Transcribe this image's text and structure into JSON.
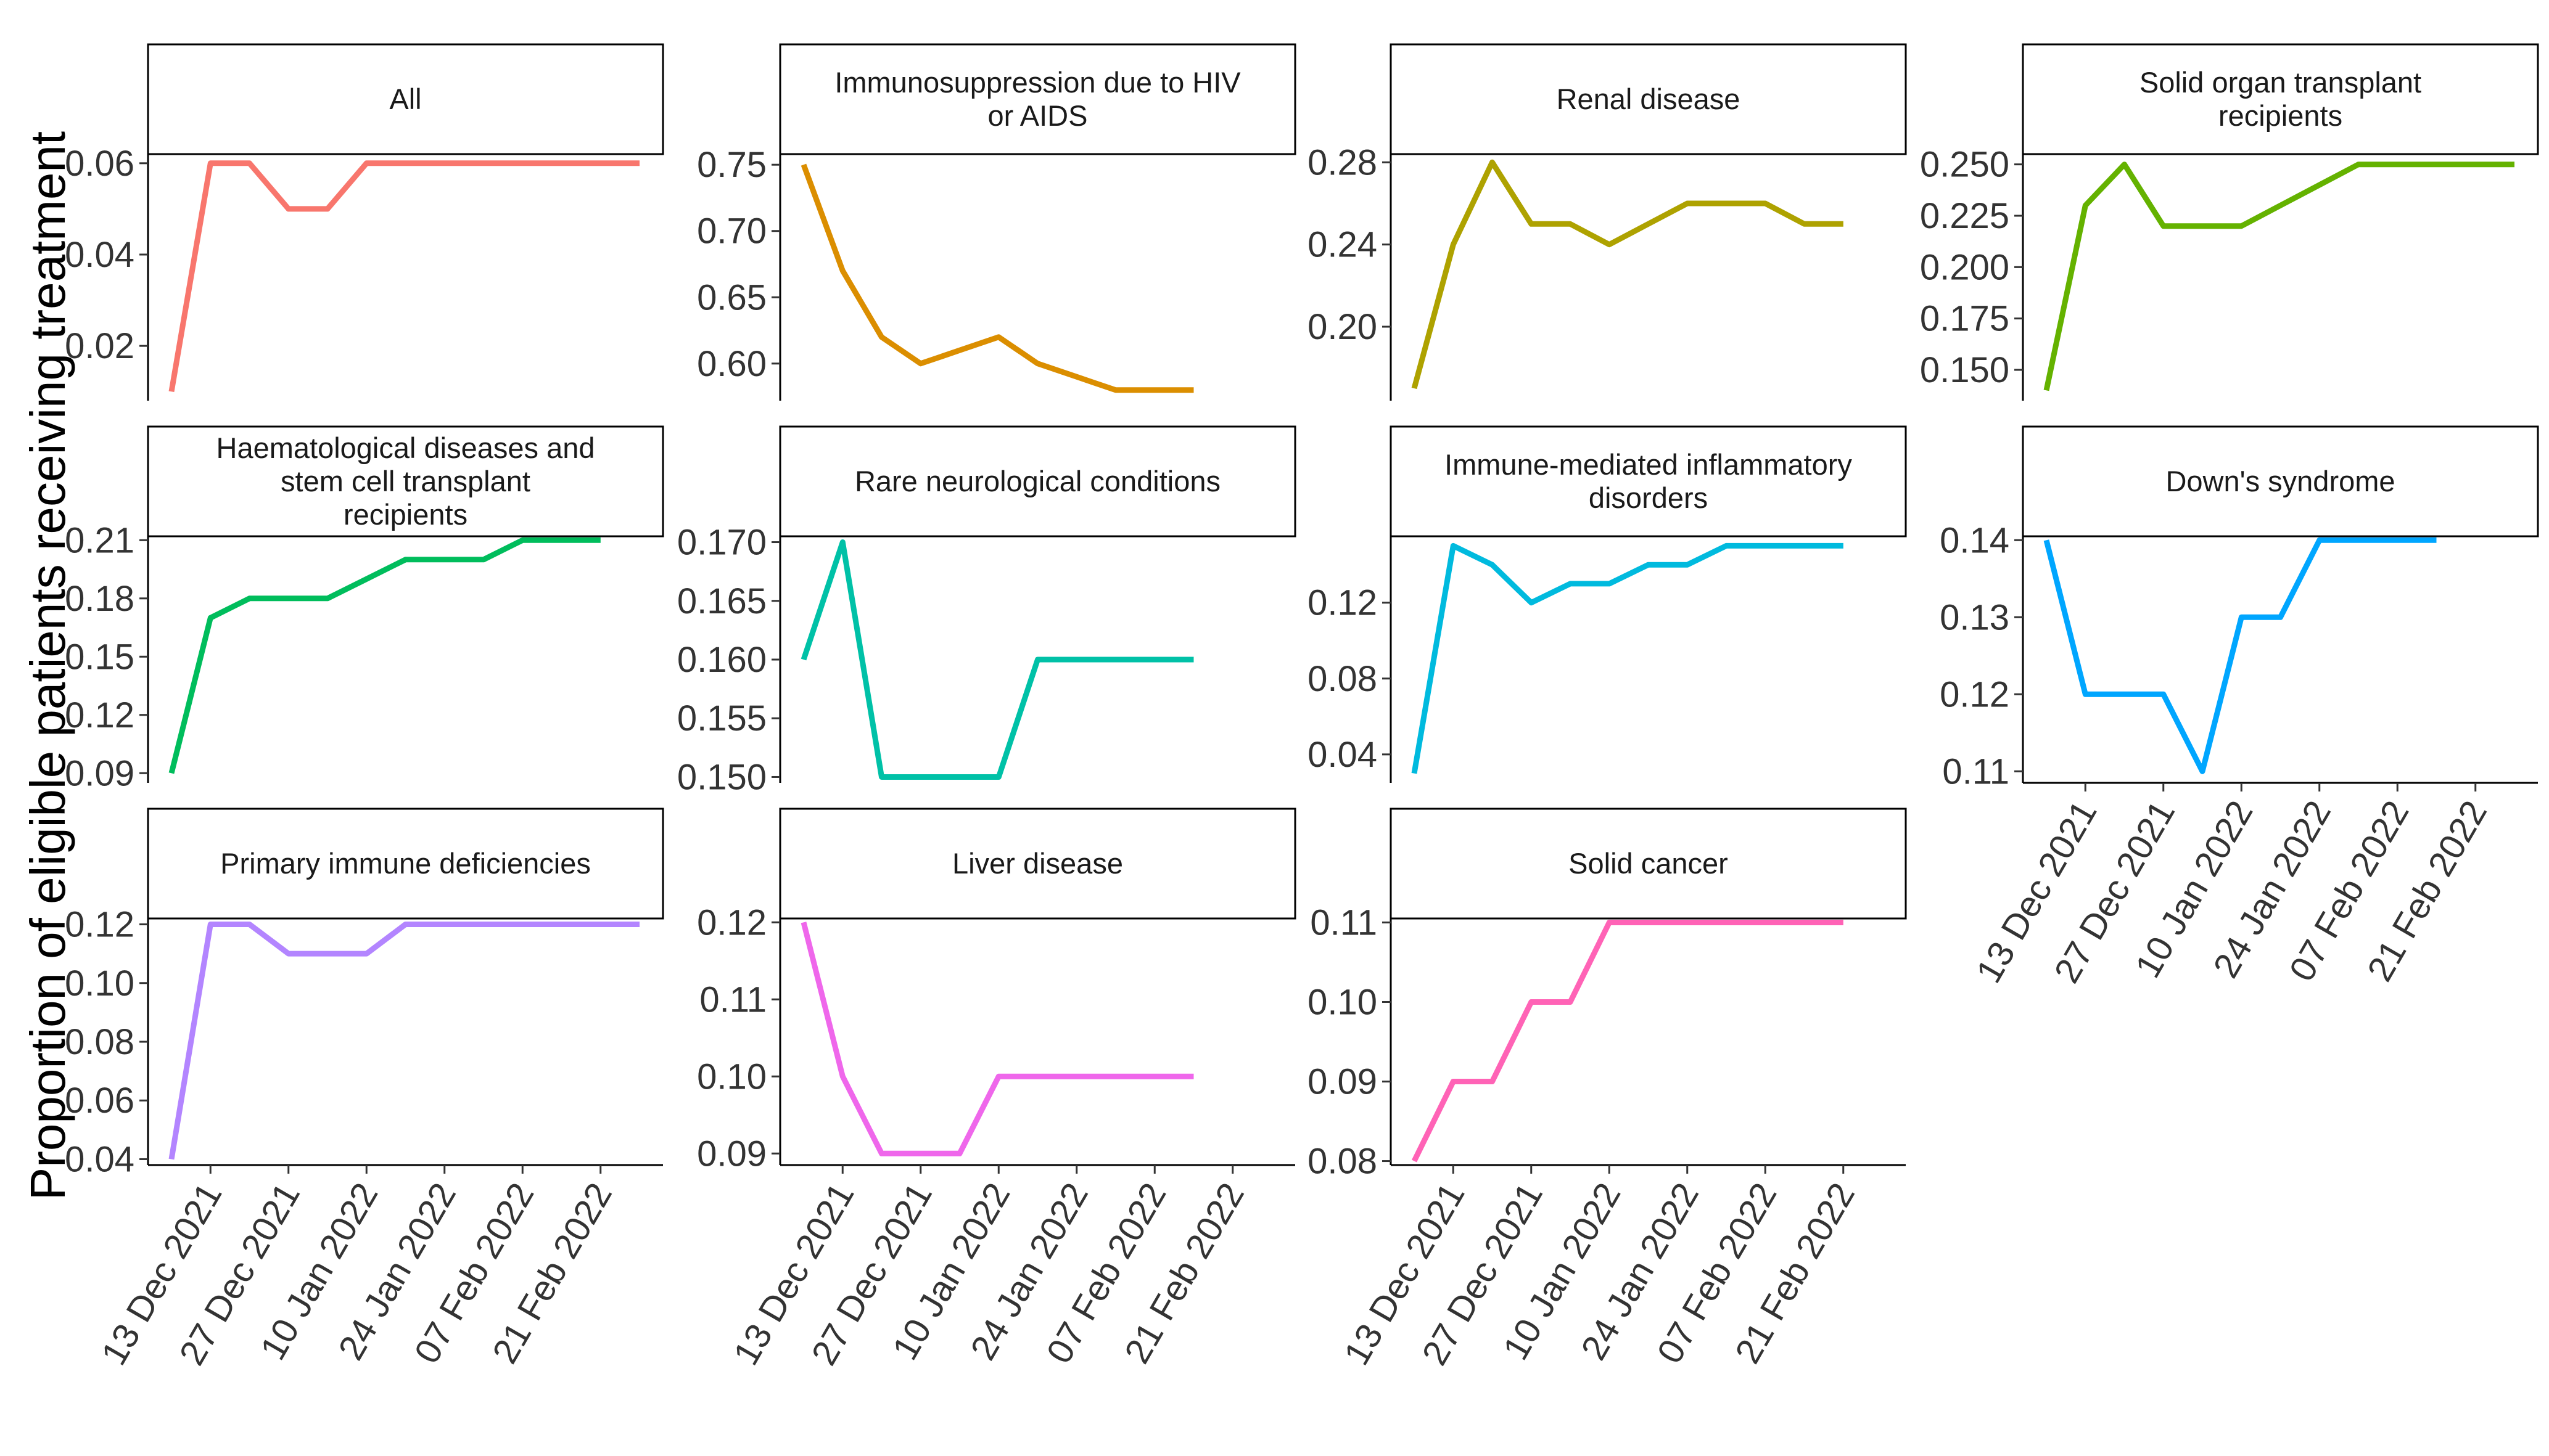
{
  "chart_data": {
    "type": "line",
    "ylabel": "Proportion of eligible patients receiving treatment",
    "x": [
      "2021-12-06",
      "2021-12-13",
      "2021-12-20",
      "2021-12-27",
      "2022-01-03",
      "2022-01-10",
      "2022-01-17",
      "2022-01-24",
      "2022-01-31",
      "2022-02-07",
      "2022-02-14",
      "2022-02-21",
      "2022-02-28"
    ],
    "x_tick_dates": [
      "2021-12-13",
      "2021-12-27",
      "2022-01-10",
      "2022-01-24",
      "2022-02-07",
      "2022-02-21"
    ],
    "x_tick_labels": [
      "13 Dec 2021",
      "27 Dec 2021",
      "10 Jan 2022",
      "24 Jan 2022",
      "07 Feb 2022",
      "21 Feb 2022"
    ],
    "panels": [
      {
        "title": [
          "All"
        ],
        "color": "#F8766D",
        "ylim": [
          0.008,
          0.062
        ],
        "yticks": [
          0.02,
          0.04,
          0.06
        ],
        "ytick_labels": [
          "0.02",
          "0.04",
          "0.06"
        ],
        "values": [
          0.01,
          0.06,
          0.06,
          0.05,
          0.05,
          0.06,
          0.06,
          0.06,
          0.06,
          0.06,
          0.06,
          0.06,
          0.06
        ]
      },
      {
        "title": [
          "Immunosuppression due to HIV",
          "or AIDS"
        ],
        "color": "#DB8E00",
        "ylim": [
          0.572,
          0.758
        ],
        "yticks": [
          0.6,
          0.65,
          0.7,
          0.75
        ],
        "ytick_labels": [
          "0.60",
          "0.65",
          "0.70",
          "0.75"
        ],
        "values": [
          0.75,
          0.67,
          0.62,
          0.6,
          0.61,
          0.62,
          0.6,
          0.59,
          0.58,
          0.58,
          0.58
        ]
      },
      {
        "title": [
          "Renal disease"
        ],
        "color": "#AEA200",
        "ylim": [
          0.164,
          0.284
        ],
        "yticks": [
          0.2,
          0.24,
          0.28
        ],
        "ytick_labels": [
          "0.20",
          "0.24",
          "0.28"
        ],
        "values": [
          0.17,
          0.24,
          0.28,
          0.25,
          0.25,
          0.24,
          0.25,
          0.26,
          0.26,
          0.26,
          0.25,
          0.25
        ]
      },
      {
        "title": [
          "Solid organ transplant",
          "recipients"
        ],
        "color": "#64B200",
        "ylim": [
          0.135,
          0.255
        ],
        "yticks": [
          0.15,
          0.175,
          0.2,
          0.225,
          0.25
        ],
        "ytick_labels": [
          "0.150",
          "0.175",
          "0.200",
          "0.225",
          "0.250"
        ],
        "values": [
          0.14,
          0.23,
          0.25,
          0.22,
          0.22,
          0.22,
          0.23,
          0.24,
          0.25,
          0.25,
          0.25,
          0.25,
          0.25
        ]
      },
      {
        "title": [
          "Haematological diseases and",
          "stem cell transplant",
          "recipients"
        ],
        "color": "#00BD5C",
        "ylim": [
          0.085,
          0.212
        ],
        "yticks": [
          0.09,
          0.12,
          0.15,
          0.18,
          0.21
        ],
        "ytick_labels": [
          "0.09",
          "0.12",
          "0.15",
          "0.18",
          "0.21"
        ],
        "values": [
          0.09,
          0.17,
          0.18,
          0.18,
          0.18,
          0.19,
          0.2,
          0.2,
          0.2,
          0.21,
          0.21,
          0.21
        ]
      },
      {
        "title": [
          "Rare neurological conditions"
        ],
        "color": "#00C1A7",
        "ylim": [
          0.1495,
          0.1705
        ],
        "yticks": [
          0.15,
          0.155,
          0.16,
          0.165,
          0.17
        ],
        "ytick_labels": [
          "0.150",
          "0.155",
          "0.160",
          "0.165",
          "0.170"
        ],
        "values": [
          0.16,
          0.17,
          0.15,
          0.15,
          0.15,
          0.15,
          0.16,
          0.16,
          0.16,
          0.16,
          0.16
        ]
      },
      {
        "title": [
          "Immune-mediated inflammatory",
          "disorders"
        ],
        "color": "#00BADE",
        "ylim": [
          0.025,
          0.155
        ],
        "yticks": [
          0.04,
          0.08,
          0.12
        ],
        "ytick_labels": [
          "0.04",
          "0.08",
          "0.12"
        ],
        "values": [
          0.03,
          0.15,
          0.14,
          0.12,
          0.13,
          0.13,
          0.14,
          0.14,
          0.15,
          0.15,
          0.15,
          0.15
        ]
      },
      {
        "title": [
          "Down's syndrome"
        ],
        "color": "#00A6FF",
        "ylim": [
          0.1085,
          0.1405
        ],
        "yticks": [
          0.11,
          0.12,
          0.13,
          0.14
        ],
        "ytick_labels": [
          "0.11",
          "0.12",
          "0.13",
          "0.14"
        ],
        "values": [
          0.14,
          0.12,
          0.12,
          0.12,
          0.11,
          0.13,
          0.13,
          0.14,
          0.14,
          0.14,
          0.14
        ]
      },
      {
        "title": [
          "Primary immune deficiencies"
        ],
        "color": "#B385FF",
        "ylim": [
          0.038,
          0.122
        ],
        "yticks": [
          0.04,
          0.06,
          0.08,
          0.1,
          0.12
        ],
        "ytick_labels": [
          "0.04",
          "0.06",
          "0.08",
          "0.10",
          "0.12"
        ],
        "values": [
          0.04,
          0.12,
          0.12,
          0.11,
          0.11,
          0.11,
          0.12,
          0.12,
          0.12,
          0.12,
          0.12,
          0.12,
          0.12
        ]
      },
      {
        "title": [
          "Liver disease"
        ],
        "color": "#EF67EB",
        "ylim": [
          0.0885,
          0.1205
        ],
        "yticks": [
          0.09,
          0.1,
          0.11,
          0.12
        ],
        "ytick_labels": [
          "0.09",
          "0.10",
          "0.11",
          "0.12"
        ],
        "values": [
          0.12,
          0.1,
          0.09,
          0.09,
          0.09,
          0.1,
          0.1,
          0.1,
          0.1,
          0.1,
          0.1
        ]
      },
      {
        "title": [
          "Solid cancer"
        ],
        "color": "#FF63B6",
        "ylim": [
          0.0795,
          0.1105
        ],
        "yticks": [
          0.08,
          0.09,
          0.1,
          0.11
        ],
        "ytick_labels": [
          "0.08",
          "0.09",
          "0.10",
          "0.11"
        ],
        "values": [
          0.08,
          0.09,
          0.09,
          0.1,
          0.1,
          0.11,
          0.11,
          0.11,
          0.11,
          0.11,
          0.11,
          0.11
        ]
      }
    ]
  }
}
